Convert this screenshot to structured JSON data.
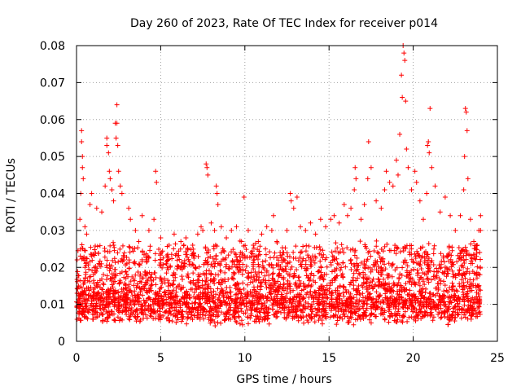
{
  "chart_data": {
    "type": "scatter",
    "title": "Day 260 of 2023, Rate Of TEC Index for receiver p014",
    "xlabel": "GPS time / hours",
    "ylabel": "ROTI / TECUs",
    "xlim": [
      0,
      25
    ],
    "ylim": [
      0,
      0.08
    ],
    "x_ticks": [
      0,
      5,
      10,
      15,
      20,
      25
    ],
    "x_tick_labels": [
      "0",
      "5",
      "10",
      "15",
      "20",
      "25"
    ],
    "y_ticks": [
      0,
      0.01,
      0.02,
      0.03,
      0.04,
      0.05,
      0.06,
      0.07,
      0.08
    ],
    "y_tick_labels": [
      "0",
      "0.01",
      "0.02",
      "0.03",
      "0.04",
      "0.05",
      "0.06",
      "0.07",
      "0.08"
    ],
    "grid": true,
    "marker": "plus",
    "color": "#ff0000",
    "series": [
      {
        "name": "p014",
        "points": [
          [
            0.3,
            0.057
          ],
          [
            0.3,
            0.054
          ],
          [
            0.35,
            0.05
          ],
          [
            0.35,
            0.047
          ],
          [
            0.25,
            0.04
          ],
          [
            0.4,
            0.044
          ],
          [
            0.2,
            0.033
          ],
          [
            0.5,
            0.031
          ],
          [
            0.6,
            0.029
          ],
          [
            0.8,
            0.037
          ],
          [
            0.9,
            0.04
          ],
          [
            1.2,
            0.036
          ],
          [
            1.5,
            0.035
          ],
          [
            1.7,
            0.042
          ],
          [
            1.8,
            0.055
          ],
          [
            1.8,
            0.053
          ],
          [
            1.9,
            0.051
          ],
          [
            1.95,
            0.046
          ],
          [
            2.0,
            0.044
          ],
          [
            2.1,
            0.041
          ],
          [
            2.2,
            0.038
          ],
          [
            2.3,
            0.059
          ],
          [
            2.35,
            0.055
          ],
          [
            2.4,
            0.064
          ],
          [
            2.4,
            0.059
          ],
          [
            2.45,
            0.053
          ],
          [
            2.5,
            0.046
          ],
          [
            2.6,
            0.042
          ],
          [
            2.7,
            0.04
          ],
          [
            3.1,
            0.036
          ],
          [
            3.2,
            0.033
          ],
          [
            3.5,
            0.03
          ],
          [
            3.7,
            0.027
          ],
          [
            3.9,
            0.034
          ],
          [
            4.3,
            0.03
          ],
          [
            4.6,
            0.033
          ],
          [
            4.7,
            0.046
          ],
          [
            4.75,
            0.043
          ],
          [
            5.0,
            0.028
          ],
          [
            5.5,
            0.026
          ],
          [
            5.8,
            0.029
          ],
          [
            6.2,
            0.027
          ],
          [
            6.5,
            0.028
          ],
          [
            6.9,
            0.026
          ],
          [
            7.2,
            0.029
          ],
          [
            7.4,
            0.031
          ],
          [
            7.5,
            0.03
          ],
          [
            7.7,
            0.048
          ],
          [
            7.75,
            0.047
          ],
          [
            7.8,
            0.045
          ],
          [
            8.0,
            0.032
          ],
          [
            8.2,
            0.03
          ],
          [
            8.3,
            0.042
          ],
          [
            8.35,
            0.04
          ],
          [
            8.4,
            0.037
          ],
          [
            8.6,
            0.031
          ],
          [
            8.9,
            0.028
          ],
          [
            9.2,
            0.03
          ],
          [
            9.5,
            0.031
          ],
          [
            9.8,
            0.027
          ],
          [
            9.95,
            0.039
          ],
          [
            10.2,
            0.03
          ],
          [
            10.5,
            0.026
          ],
          [
            10.8,
            0.027
          ],
          [
            11.0,
            0.029
          ],
          [
            11.3,
            0.031
          ],
          [
            11.6,
            0.03
          ],
          [
            11.7,
            0.034
          ],
          [
            11.9,
            0.027
          ],
          [
            12.3,
            0.024
          ],
          [
            12.5,
            0.03
          ],
          [
            12.7,
            0.04
          ],
          [
            12.75,
            0.038
          ],
          [
            12.9,
            0.036
          ],
          [
            13.1,
            0.039
          ],
          [
            13.3,
            0.031
          ],
          [
            13.6,
            0.03
          ],
          [
            13.9,
            0.032
          ],
          [
            14.2,
            0.029
          ],
          [
            14.5,
            0.033
          ],
          [
            14.8,
            0.031
          ],
          [
            15.1,
            0.033
          ],
          [
            15.3,
            0.034
          ],
          [
            15.6,
            0.032
          ],
          [
            15.9,
            0.037
          ],
          [
            16.1,
            0.034
          ],
          [
            16.3,
            0.036
          ],
          [
            16.5,
            0.041
          ],
          [
            16.55,
            0.047
          ],
          [
            16.6,
            0.044
          ],
          [
            16.9,
            0.033
          ],
          [
            17.1,
            0.037
          ],
          [
            17.3,
            0.044
          ],
          [
            17.35,
            0.054
          ],
          [
            17.5,
            0.047
          ],
          [
            17.8,
            0.038
          ],
          [
            18.1,
            0.036
          ],
          [
            18.3,
            0.041
          ],
          [
            18.4,
            0.046
          ],
          [
            18.6,
            0.043
          ],
          [
            18.8,
            0.042
          ],
          [
            19.0,
            0.049
          ],
          [
            19.1,
            0.045
          ],
          [
            19.2,
            0.056
          ],
          [
            19.3,
            0.072
          ],
          [
            19.35,
            0.066
          ],
          [
            19.4,
            0.08
          ],
          [
            19.45,
            0.078
          ],
          [
            19.5,
            0.076
          ],
          [
            19.55,
            0.065
          ],
          [
            19.6,
            0.052
          ],
          [
            19.7,
            0.047
          ],
          [
            19.9,
            0.041
          ],
          [
            20.1,
            0.046
          ],
          [
            20.2,
            0.043
          ],
          [
            20.4,
            0.038
          ],
          [
            20.6,
            0.033
          ],
          [
            20.8,
            0.04
          ],
          [
            20.85,
            0.053
          ],
          [
            20.9,
            0.054
          ],
          [
            20.95,
            0.051
          ],
          [
            21.0,
            0.063
          ],
          [
            21.1,
            0.047
          ],
          [
            21.3,
            0.042
          ],
          [
            21.6,
            0.035
          ],
          [
            21.9,
            0.039
          ],
          [
            22.2,
            0.034
          ],
          [
            22.5,
            0.03
          ],
          [
            22.8,
            0.034
          ],
          [
            23.0,
            0.041
          ],
          [
            23.05,
            0.05
          ],
          [
            23.1,
            0.063
          ],
          [
            23.15,
            0.062
          ],
          [
            23.2,
            0.057
          ],
          [
            23.25,
            0.044
          ],
          [
            23.4,
            0.033
          ],
          [
            23.6,
            0.027
          ],
          [
            23.8,
            0.026
          ],
          [
            23.9,
            0.03
          ],
          [
            24.0,
            0.034
          ],
          [
            24.0,
            0.03
          ]
        ],
        "band": {
          "x_range": [
            0,
            24
          ],
          "floor_range": [
            0.004,
            0.01
          ],
          "typical_max": 0.027
        }
      }
    ]
  }
}
